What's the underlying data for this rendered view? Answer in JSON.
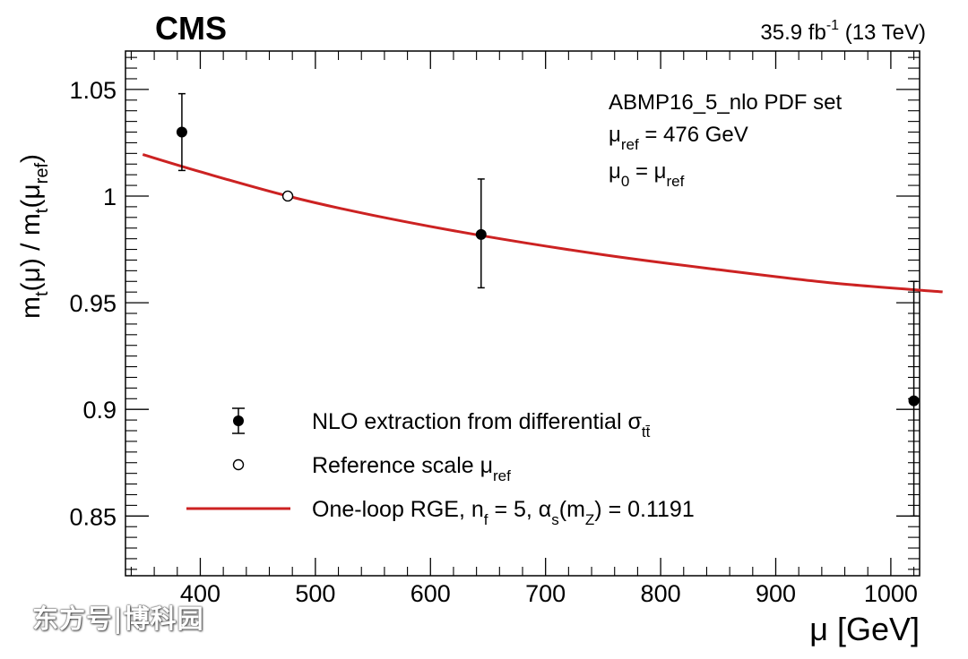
{
  "chart_data": {
    "type": "scatter",
    "experiment": "CMS",
    "luminosity": "35.9 fb",
    "luminosity_exponent": "-1",
    "energy": "(13 TeV)",
    "xlabel": "μ [GeV]",
    "ylabel": {
      "main": "m",
      "sub_t": "t",
      "mu": "(μ) / m",
      "ref_open": "(μ",
      "sub_ref": "ref",
      "close": ")"
    },
    "xlim": [
      335,
      1025
    ],
    "ylim": [
      0.822,
      1.068
    ],
    "x_ticks": [
      400,
      500,
      600,
      700,
      800,
      900,
      1000
    ],
    "x_tick_labels": [
      "400",
      "500",
      "600",
      "700",
      "800",
      "900",
      "1000"
    ],
    "y_ticks": [
      0.85,
      0.9,
      0.95,
      1.0,
      1.05
    ],
    "y_tick_labels": [
      "0.85",
      "0.9",
      "0.95",
      "1",
      "1.05"
    ],
    "info_box": {
      "line1": "ABMP16_5_nlo PDF set",
      "line2_main": "μ",
      "line2_sub": "ref",
      "line2_rest": " = 476 GeV",
      "line3_a": "μ",
      "line3_sub0": "0",
      "line3_mid": " = μ",
      "line3_sub": "ref"
    },
    "series": [
      {
        "name": "NLO extraction from differential σ",
        "name_sub": "tt̄",
        "marker": "filled-circle",
        "color": "#000000",
        "points": [
          {
            "x": 384,
            "y": 1.03,
            "ylo": 1.012,
            "yhi": 1.048
          },
          {
            "x": 644,
            "y": 0.982,
            "ylo": 0.957,
            "yhi": 1.008
          },
          {
            "x": 1020,
            "y": 0.904,
            "ylo": 0.85,
            "yhi": 0.96
          }
        ]
      },
      {
        "name": "Reference scale μ",
        "name_sub": "ref",
        "marker": "open-circle",
        "color": "#000000",
        "points": [
          {
            "x": 476,
            "y": 1.0
          }
        ]
      },
      {
        "name": "One-loop RGE, n",
        "name_sub": "f",
        "name_rest": " = 5, α",
        "name_sub2": "s",
        "name_rest2": "(m",
        "name_sub3": "Z",
        "name_rest3": ") = 0.1191",
        "marker": "line",
        "color": "#cc2222",
        "curve": [
          {
            "x": 350,
            "y": 1.0195
          },
          {
            "x": 400,
            "y": 1.0114
          },
          {
            "x": 476,
            "y": 1.0
          },
          {
            "x": 550,
            "y": 0.991
          },
          {
            "x": 644,
            "y": 0.9815
          },
          {
            "x": 750,
            "y": 0.9725
          },
          {
            "x": 850,
            "y": 0.9655
          },
          {
            "x": 950,
            "y": 0.9592
          },
          {
            "x": 1045,
            "y": 0.9551
          }
        ]
      }
    ],
    "legend_position": "lower-left"
  },
  "watermark": "东方号|博科园"
}
